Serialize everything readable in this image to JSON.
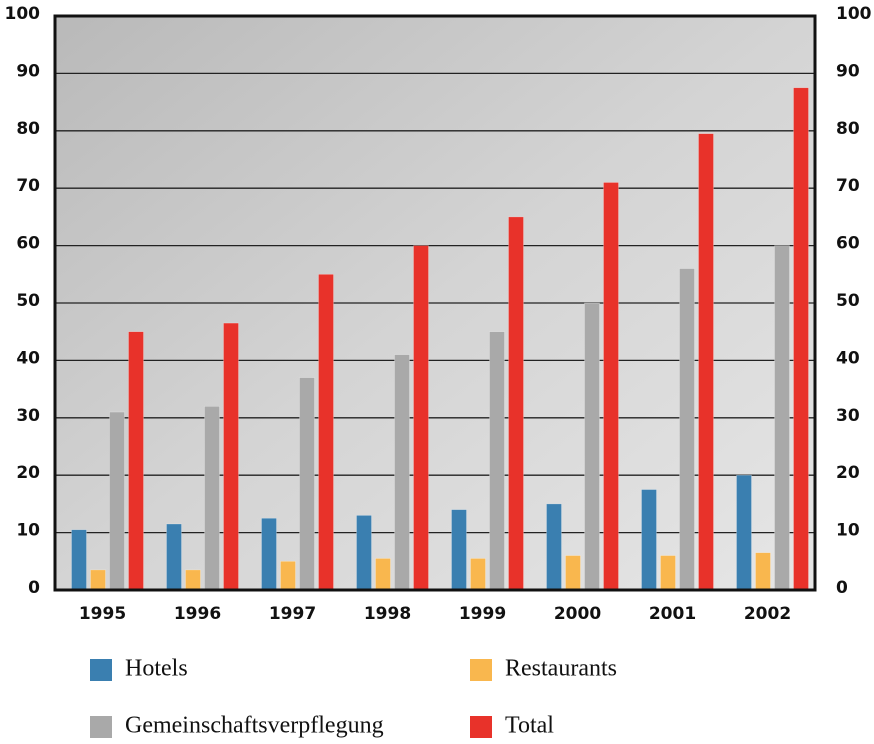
{
  "chart_data": {
    "type": "bar",
    "categories": [
      "1995",
      "1996",
      "1997",
      "1998",
      "1999",
      "2000",
      "2001",
      "2002"
    ],
    "series": [
      {
        "name": "Hotels",
        "color": "#3a7fb0",
        "values": [
          10.5,
          11.5,
          12.5,
          13,
          14,
          15,
          17.5,
          20
        ]
      },
      {
        "name": "Restaurants",
        "color": "#f9b74e",
        "values": [
          3.5,
          3.5,
          5,
          5.5,
          5.5,
          6,
          6,
          6.5
        ]
      },
      {
        "name": "Gemeinschaftsverpflegung",
        "color": "#a9a9a9",
        "values": [
          31,
          32,
          37,
          41,
          45,
          50,
          56,
          60
        ]
      },
      {
        "name": "Total",
        "color": "#e8322a",
        "values": [
          45,
          46.5,
          55,
          60,
          65,
          71,
          79.5,
          87.5
        ]
      }
    ],
    "ylim": [
      0,
      100
    ],
    "yticks": [
      0,
      10,
      20,
      30,
      40,
      50,
      60,
      70,
      80,
      90,
      100
    ],
    "y2lim": [
      0,
      100
    ],
    "y2ticks": [
      0,
      10,
      20,
      30,
      40,
      50,
      60,
      70,
      80,
      90,
      100
    ],
    "grid": true,
    "legend": "bottom"
  }
}
